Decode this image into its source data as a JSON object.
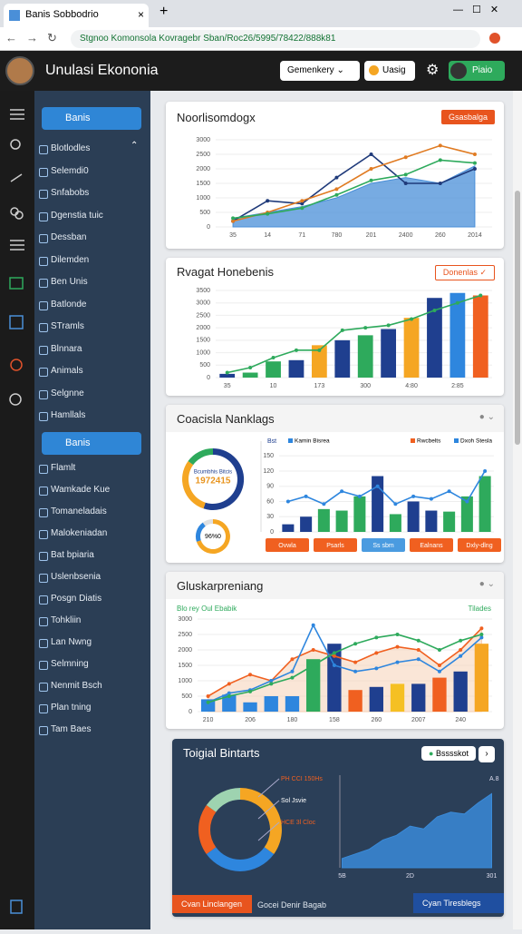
{
  "browser": {
    "tab_title": "Banis Sobbodrio",
    "url": "Stgnoo Komonsola Kovragebr Sban/Roc26/5995/78422/888k81"
  },
  "header": {
    "title": "Unulasi Ekononia",
    "dropdown": "Gemenkery",
    "button": "Uasig",
    "user": "Piaio"
  },
  "sidebar": {
    "section1": "Banis",
    "items1": [
      "Blotlodles",
      "Selemdi0",
      "Snfabobs",
      "Dgenstia tuic",
      "Dessban",
      "Dilemden",
      "Ben Unis",
      "Batlonde",
      "STramls",
      "Blnnara",
      "Animals",
      "Selgnne",
      "Hamllals"
    ],
    "section2": "Banis",
    "items2": [
      "Flamlt",
      "Wamkade Kue",
      "Tomaneladais",
      "Malokeniadan",
      "Bat bpiaria",
      "Uslenbsenia",
      "Posgn Diatis",
      "Tohkliin",
      "Lan Nwng",
      "Selmning",
      "Nenmit Bsch",
      "Plan tning",
      "Tam Baes"
    ]
  },
  "cards": [
    {
      "title": "Noorlisomdogx",
      "badge": "Gsasbalga",
      "chart": {
        "type": "line",
        "ylim": [
          0,
          3000
        ],
        "yticks": [
          0,
          500,
          1000,
          1500,
          2000,
          2500,
          3000
        ],
        "categories": [
          "35",
          "14",
          "71",
          "780",
          "201",
          "2400",
          "260",
          "2014"
        ],
        "series": [
          {
            "kind": "area",
            "color": "#4a8fd8",
            "values": [
              300,
              500,
              700,
              1000,
              1500,
              1700,
              1500,
              2100
            ]
          },
          {
            "kind": "line",
            "color": "#1f3a7a",
            "values": [
              200,
              900,
              800,
              1700,
              2500,
              1500,
              1500,
              2000
            ]
          },
          {
            "kind": "line",
            "color": "#e07b22",
            "values": [
              200,
              500,
              900,
              1300,
              2000,
              2400,
              2800,
              2500
            ]
          },
          {
            "kind": "line",
            "color": "#2eaa5c",
            "values": [
              300,
              450,
              650,
              1100,
              1600,
              1800,
              2300,
              2200
            ]
          }
        ]
      }
    },
    {
      "title": "Rvagat Honebenis",
      "badge": "Donenlas",
      "chart": {
        "type": "bar",
        "ylim": [
          0,
          3500
        ],
        "yticks": [
          0,
          500,
          1000,
          1500,
          2000,
          2500,
          3000,
          3500
        ],
        "categories": [
          "35",
          null,
          "10",
          null,
          "173",
          null,
          "300",
          null,
          "4:80",
          null,
          "2:85",
          null
        ],
        "series": [
          {
            "kind": "bar",
            "colors": [
              "#1f3f8f",
              "#2eaa5c",
              "#2eaa5c",
              "#1f3f8f",
              "#f5a623",
              "#1f3f8f",
              "#2eaa5c",
              "#1f3f8f",
              "#f5a623",
              "#1f3f8f",
              "#2e86de",
              "#f06020"
            ],
            "values": [
              150,
              200,
              650,
              700,
              1300,
              1500,
              1700,
              1950,
              2400,
              3200,
              3400,
              3300
            ]
          },
          {
            "kind": "line",
            "color": "#2eaa5c",
            "values": [
              200,
              400,
              800,
              1100,
              1100,
              1900,
              2000,
              2100,
              2350,
              2700,
              3000,
              3300
            ]
          }
        ]
      }
    },
    {
      "title": "Coacisla Nanklags",
      "donut": {
        "type": "donut",
        "center": "1972415",
        "center_top": "Bcumbhis Bitcis",
        "values": [
          55,
          30,
          15
        ],
        "colors": [
          "#1f3f8f",
          "#f5a623",
          "#2eaa5c"
        ]
      },
      "small_donut": {
        "type": "donut",
        "center": "96%0",
        "values": [
          70,
          20,
          10
        ],
        "colors": [
          "#f5a623",
          "#2e86de",
          "#e0e0e0"
        ]
      },
      "legend_title": "Bst",
      "legend": [
        {
          "name": "Kamin Bisrea",
          "color": "#2e86de"
        },
        {
          "name": "Rwcbelts",
          "color": "#f06020"
        },
        {
          "name": "Dxoh Stesla",
          "color": "#2e86de"
        }
      ],
      "chart": {
        "type": "bar",
        "ylim": [
          0,
          170
        ],
        "yticks": [
          0,
          30,
          60,
          90,
          120,
          150
        ],
        "categories": [
          null,
          null,
          null,
          null,
          null,
          null,
          null,
          null,
          null,
          null,
          null,
          null
        ],
        "series": [
          {
            "kind": "bar",
            "colors": [
              "#1f3f8f",
              "#1f3f8f",
              "#2eaa5c",
              "#2eaa5c",
              "#2eaa5c",
              "#1f3f8f",
              "#2eaa5c",
              "#1f3f8f",
              "#1f3f8f",
              "#2eaa5c",
              "#2eaa5c",
              "#2eaa5c"
            ],
            "values": [
              15,
              30,
              45,
              42,
              70,
              110,
              35,
              60,
              42,
              40,
              70,
              110
            ]
          },
          {
            "kind": "line",
            "color": "#2e86de",
            "values": [
              60,
              70,
              55,
              80,
              70,
              90,
              55,
              70,
              65,
              80,
              60,
              120
            ]
          }
        ]
      },
      "buttons": [
        {
          "label": "Ovwla",
          "color": "#f06020"
        },
        {
          "label": "Psarls",
          "color": "#f06020"
        },
        {
          "label": "Ss sbm",
          "color": "#4a9be0"
        },
        {
          "label": "Ealnans",
          "color": "#f06020"
        },
        {
          "label": "Dxly-dlng",
          "color": "#f06020"
        }
      ]
    },
    {
      "title": "Gluskarpreniang",
      "subtitle": "Blo rey Oul Ebabik",
      "right_label": "Tilades",
      "chart": {
        "type": "bar",
        "ylim": [
          0,
          3000
        ],
        "yticks": [
          0,
          500,
          1000,
          1500,
          2000,
          2500,
          3000
        ],
        "categories": [
          "210",
          null,
          "206",
          null,
          "180",
          null,
          "158",
          null,
          "260",
          null,
          "2007",
          null,
          "240",
          null
        ],
        "series": [
          {
            "kind": "area",
            "color": "#f6cdb0",
            "values": [
              500,
              900,
              1200,
              1000,
              1700,
              2000,
              1800,
              1600,
              1900,
              2100,
              2000,
              1500,
              2000,
              2700
            ]
          },
          {
            "kind": "bar",
            "colors": [
              "#2e86de",
              "#2e86de",
              "#2e86de",
              "#2e86de",
              "#2e86de",
              "#2eaa5c",
              "#1f3f8f",
              "#f06020",
              "#1f3f8f",
              "#f5c023",
              "#1f3f8f",
              "#f06020",
              "#1f3f8f",
              "#f5a623"
            ],
            "values": [
              400,
              550,
              300,
              500,
              500,
              1700,
              2200,
              700,
              800,
              900,
              900,
              1100,
              1300,
              2200
            ]
          },
          {
            "kind": "line",
            "color": "#f06020",
            "values": [
              500,
              900,
              1200,
              1000,
              1700,
              2000,
              1800,
              1600,
              1900,
              2100,
              2000,
              1500,
              2000,
              2700
            ]
          },
          {
            "kind": "line",
            "color": "#2e86de",
            "values": [
              300,
              600,
              700,
              1000,
              1300,
              2800,
              1500,
              1300,
              1400,
              1600,
              1700,
              1300,
              1800,
              2400
            ]
          },
          {
            "kind": "line",
            "color": "#2eaa5c",
            "values": [
              300,
              500,
              650,
              900,
              1100,
              1500,
              1900,
              2200,
              2400,
              2500,
              2300,
              2000,
              2300,
              2500
            ]
          }
        ]
      }
    },
    {
      "title": "Toigial Bintarts",
      "button": "Bsssskot",
      "donut": {
        "type": "donut",
        "values": [
          35,
          30,
          20,
          15
        ],
        "colors": [
          "#f5a623",
          "#2e86de",
          "#f06020",
          "#9ed3b0"
        ]
      },
      "donut_labels": [
        "PH CCI 150Hs",
        "Sol Jsvie",
        "HCE 3l Cloc"
      ],
      "chart": {
        "type": "area",
        "ylim": [
          0,
          100
        ],
        "yticks": [],
        "categories": [
          "5B",
          null,
          null,
          null,
          null,
          "2D",
          null,
          null,
          null,
          null,
          null,
          "301"
        ],
        "label_top": "A.8",
        "series": [
          {
            "kind": "area",
            "color": "#3a8ad8",
            "values": [
              10,
              15,
              20,
              30,
              35,
              45,
              42,
              55,
              60,
              58,
              70,
              80
            ]
          }
        ]
      },
      "footer": [
        "Cvan Linclangen",
        "Gocei Denir Bagab",
        "Cyan Tiresblegs"
      ]
    }
  ]
}
